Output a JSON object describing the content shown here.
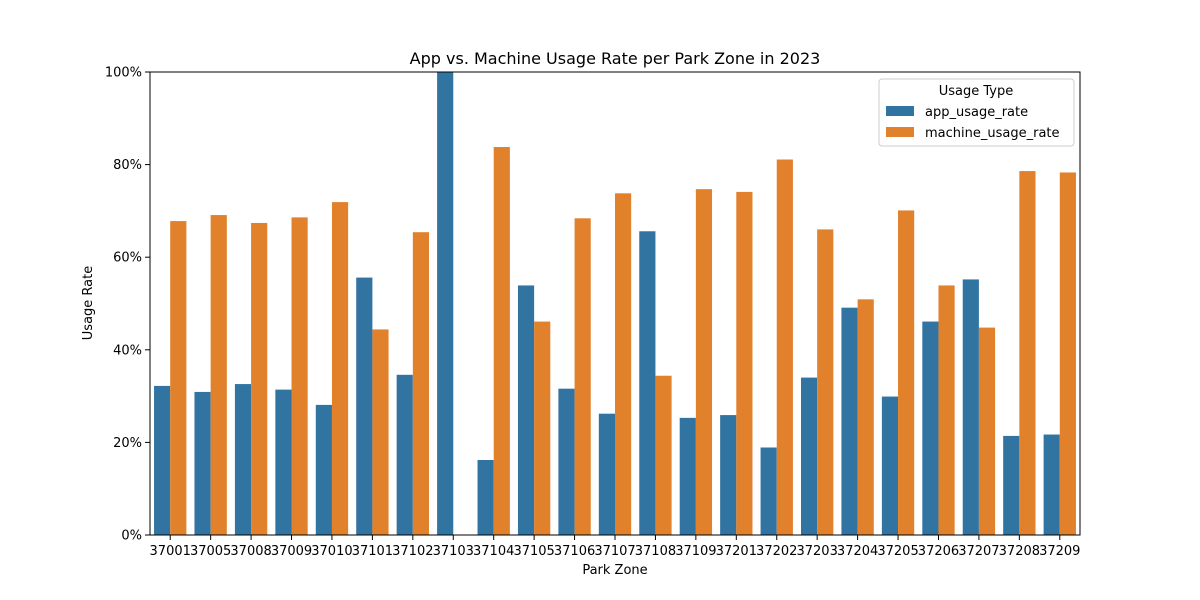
{
  "chart_data": {
    "type": "bar",
    "title": "App vs. Machine Usage Rate per Park Zone in 2023",
    "xlabel": "Park Zone",
    "ylabel": "Usage Rate",
    "ylim": [
      0,
      1
    ],
    "y_ticks": [
      "0%",
      "20%",
      "40%",
      "60%",
      "80%",
      "100%"
    ],
    "grid": false,
    "legend_position": "top-right",
    "legend_title": "Usage Type",
    "categories": [
      "37001",
      "37005",
      "37008",
      "37009",
      "37010",
      "37101",
      "37102",
      "37103",
      "37104",
      "37105",
      "37106",
      "37107",
      "37108",
      "37109",
      "37201",
      "37202",
      "37203",
      "37204",
      "37205",
      "37206",
      "37207",
      "37208",
      "37209"
    ],
    "series": [
      {
        "name": "app_usage_rate",
        "color": "#3274a1",
        "values": [
          0.322,
          0.309,
          0.326,
          0.314,
          0.281,
          0.556,
          0.346,
          1.0,
          0.162,
          0.539,
          0.316,
          0.262,
          0.656,
          0.253,
          0.259,
          0.189,
          0.34,
          0.491,
          0.299,
          0.461,
          0.552,
          0.214,
          0.217
        ]
      },
      {
        "name": "machine_usage_rate",
        "color": "#e1812c",
        "values": [
          0.678,
          0.691,
          0.674,
          0.686,
          0.719,
          0.444,
          0.654,
          0.0,
          0.838,
          0.461,
          0.684,
          0.738,
          0.344,
          0.747,
          0.741,
          0.811,
          0.66,
          0.509,
          0.701,
          0.539,
          0.448,
          0.786,
          0.783
        ]
      }
    ]
  }
}
